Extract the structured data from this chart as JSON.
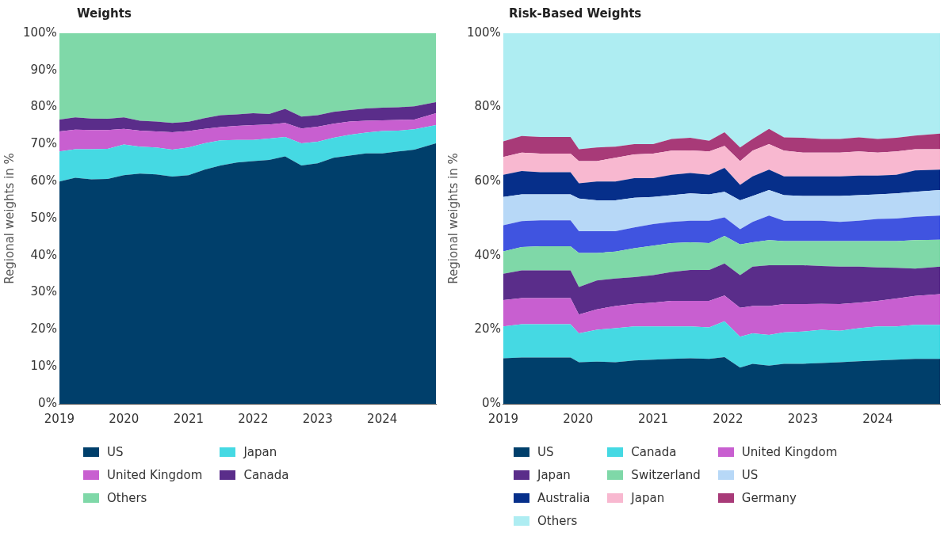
{
  "chart_data": [
    {
      "type": "area",
      "title": "Weights",
      "ylabel": "Regional weights in %",
      "stacked": true,
      "legend": "bottom",
      "grid": false,
      "x": [
        "2019-01-01",
        "2019-04-01",
        "2019-07-01",
        "2019-10-01",
        "2020-01-01",
        "2020-04-01",
        "2020-07-01",
        "2020-10-01",
        "2021-01-01",
        "2021-04-01",
        "2021-07-01",
        "2021-10-01",
        "2022-01-01",
        "2022-04-01",
        "2022-07-01",
        "2022-10-01",
        "2023-01-01",
        "2023-04-01",
        "2023-07-01",
        "2023-10-01",
        "2024-01-01",
        "2024-04-01",
        "2024-07-01",
        "2024-10-31"
      ],
      "xlim": [
        "2019-01-01",
        "2024-10-31"
      ],
      "xticks": [
        {
          "value": "2019-01-01",
          "label": "2019"
        },
        {
          "value": "2020-01-01",
          "label": "2020"
        },
        {
          "value": "2021-01-01",
          "label": "2021"
        },
        {
          "value": "2022-01-01",
          "label": "2022"
        },
        {
          "value": "2023-01-01",
          "label": "2023"
        },
        {
          "value": "2024-01-01",
          "label": "2024"
        }
      ],
      "ylim": [
        0,
        100
      ],
      "yticks": [
        {
          "value": 0,
          "label": "0%"
        },
        {
          "value": 10,
          "label": "10%"
        },
        {
          "value": 20,
          "label": "20%"
        },
        {
          "value": 30,
          "label": "30%"
        },
        {
          "value": 40,
          "label": "40%"
        },
        {
          "value": 50,
          "label": "50%"
        },
        {
          "value": 60,
          "label": "60%"
        },
        {
          "value": 70,
          "label": "70%"
        },
        {
          "value": 80,
          "label": "80%"
        },
        {
          "value": 90,
          "label": "90%"
        },
        {
          "value": 100,
          "label": "100%"
        }
      ],
      "series": [
        {
          "name": "US",
          "color": "#003f6b",
          "values": [
            60.0,
            61.0,
            60.6,
            60.7,
            61.7,
            62.1,
            61.9,
            61.3,
            61.7,
            63.2,
            64.3,
            65.1,
            65.5,
            65.8,
            66.8,
            64.3,
            64.9,
            66.4,
            67.0,
            67.6,
            67.6,
            68.1,
            68.6,
            70.3
          ]
        },
        {
          "name": "Japan",
          "color": "#45d9e3",
          "values": [
            8.1,
            7.7,
            8.1,
            8.1,
            8.3,
            7.3,
            7.3,
            7.3,
            7.5,
            7.1,
            6.8,
            6.1,
            5.7,
            5.8,
            5.2,
            6.0,
            5.8,
            5.4,
            5.6,
            5.6,
            6.0,
            5.6,
            5.5,
            4.9
          ]
        },
        {
          "name": "United Kingdom",
          "color": "#c85fd0",
          "values": [
            5.4,
            5.3,
            5.2,
            5.1,
            4.2,
            4.3,
            4.3,
            4.7,
            4.4,
            3.9,
            3.6,
            3.8,
            4.0,
            3.8,
            3.8,
            4.0,
            4.1,
            3.8,
            3.6,
            3.2,
            2.9,
            2.9,
            2.6,
            3.2
          ]
        },
        {
          "name": "Canada",
          "color": "#5a2d8a",
          "values": [
            3.2,
            3.3,
            3.1,
            3.0,
            3.1,
            2.7,
            2.7,
            2.5,
            2.5,
            2.9,
            3.2,
            3.1,
            3.2,
            2.8,
            3.8,
            3.2,
            3.1,
            3.2,
            3.1,
            3.3,
            3.4,
            3.4,
            3.6,
            3.0
          ]
        },
        {
          "name": "Others",
          "color": "#7fd8a8",
          "values": [
            23.3,
            22.7,
            23.0,
            23.1,
            22.7,
            23.6,
            23.8,
            24.2,
            23.9,
            22.9,
            22.1,
            21.9,
            21.6,
            21.8,
            20.4,
            22.5,
            22.1,
            21.2,
            20.7,
            20.3,
            20.1,
            20.0,
            19.7,
            18.6
          ]
        }
      ]
    },
    {
      "type": "area",
      "title": "Risk-Based Weights",
      "ylabel": "Regional weights in %",
      "stacked": true,
      "legend": "bottom",
      "grid": false,
      "x": [
        "2019-01-01",
        "2019-04-01",
        "2019-07-01",
        "2019-11-25",
        "2020-01-05",
        "2020-04-01",
        "2020-07-01",
        "2020-10-01",
        "2021-01-01",
        "2021-04-01",
        "2021-07-01",
        "2021-10-01",
        "2021-12-15",
        "2022-03-01",
        "2022-05-01",
        "2022-07-20",
        "2022-10-01",
        "2023-01-01",
        "2023-04-01",
        "2023-07-01",
        "2023-10-01",
        "2024-01-01",
        "2024-04-01",
        "2024-07-01",
        "2024-10-31"
      ],
      "xlim": [
        "2019-01-01",
        "2024-10-31"
      ],
      "xticks": [
        {
          "value": "2019-01-01",
          "label": "2019"
        },
        {
          "value": "2020-01-01",
          "label": "2020"
        },
        {
          "value": "2021-01-01",
          "label": "2021"
        },
        {
          "value": "2022-01-01",
          "label": "2022"
        },
        {
          "value": "2023-01-01",
          "label": "2023"
        },
        {
          "value": "2024-01-01",
          "label": "2024"
        }
      ],
      "ylim": [
        0,
        100
      ],
      "yticks": [
        {
          "value": 0,
          "label": "0%"
        },
        {
          "value": 20,
          "label": "20%"
        },
        {
          "value": 40,
          "label": "40%"
        },
        {
          "value": 60,
          "label": "60%"
        },
        {
          "value": 80,
          "label": "80%"
        },
        {
          "value": 100,
          "label": "100%"
        }
      ],
      "series": [
        {
          "name": "US",
          "color": "#003f6b",
          "values": [
            12.3,
            12.5,
            12.5,
            12.5,
            11.2,
            11.4,
            11.2,
            11.7,
            11.9,
            12.1,
            12.3,
            12.1,
            12.6,
            9.8,
            10.8,
            10.3,
            10.8,
            10.8,
            11.0,
            11.2,
            11.5,
            11.7,
            11.9,
            12.1,
            12.1
          ]
        },
        {
          "name": "Canada",
          "color": "#45d9e3",
          "values": [
            8.6,
            9.0,
            9.0,
            9.0,
            7.8,
            8.6,
            9.2,
            9.2,
            9.0,
            8.8,
            8.6,
            8.5,
            9.7,
            8.3,
            8.2,
            8.3,
            8.5,
            8.7,
            9.0,
            8.5,
            8.9,
            9.2,
            9.0,
            9.2,
            9.2
          ]
        },
        {
          "name": "United Kingdom",
          "color": "#c85fd0",
          "values": [
            7.1,
            7.0,
            7.0,
            7.0,
            5.1,
            5.5,
            6.0,
            6.1,
            6.4,
            6.9,
            6.9,
            7.2,
            6.9,
            7.8,
            7.4,
            7.8,
            7.6,
            7.4,
            7.0,
            7.2,
            6.9,
            6.9,
            7.5,
            7.8,
            8.3
          ]
        },
        {
          "name": "Japan",
          "color": "#5a2d8a",
          "values": [
            7.1,
            7.5,
            7.5,
            7.5,
            7.4,
            7.8,
            7.4,
            7.2,
            7.4,
            7.8,
            8.3,
            8.3,
            8.7,
            8.8,
            10.6,
            11.0,
            10.5,
            10.5,
            10.2,
            10.1,
            9.7,
            9.0,
            8.3,
            7.4,
            7.4
          ]
        },
        {
          "name": "Switzerland",
          "color": "#7fd8a8",
          "values": [
            6.0,
            6.3,
            6.5,
            6.5,
            9.2,
            7.4,
            7.3,
            7.8,
            8.0,
            7.8,
            7.5,
            7.3,
            7.4,
            8.3,
            6.6,
            6.8,
            6.5,
            6.5,
            6.7,
            6.9,
            6.9,
            7.1,
            7.2,
            7.7,
            7.3
          ]
        },
        {
          "color": "#4054e0",
          "values": [
            7.1,
            7.0,
            7.0,
            7.0,
            5.9,
            5.9,
            5.5,
            5.6,
            5.8,
            5.7,
            5.8,
            6.0,
            5.0,
            4.1,
            5.5,
            6.6,
            5.5,
            5.5,
            5.5,
            5.2,
            5.5,
            6.0,
            6.1,
            6.3,
            6.5
          ]
        },
        {
          "name": "US",
          "color": "#b7d8f7",
          "values": [
            7.6,
            7.2,
            7.0,
            7.0,
            8.8,
            8.3,
            8.3,
            8.0,
            7.3,
            7.2,
            7.4,
            7.1,
            6.9,
            7.8,
            7.0,
            6.9,
            6.9,
            6.7,
            6.7,
            7.0,
            6.9,
            6.6,
            6.8,
            6.7,
            6.9
          ]
        },
        {
          "name": "Australia",
          "color": "#062f8a",
          "values": [
            6.0,
            6.3,
            6.0,
            6.0,
            4.1,
            5.1,
            5.1,
            5.3,
            5.1,
            5.5,
            5.5,
            5.3,
            6.5,
            4.2,
            5.3,
            5.5,
            5.1,
            5.3,
            5.3,
            5.3,
            5.3,
            5.1,
            5.0,
            5.8,
            5.5
          ]
        },
        {
          "name": "Japan",
          "color": "#f8b8d0",
          "values": [
            4.8,
            5.0,
            5.0,
            5.0,
            6.0,
            5.5,
            6.4,
            6.4,
            6.6,
            6.5,
            6.1,
            6.3,
            5.9,
            6.4,
            6.9,
            6.9,
            6.9,
            6.4,
            6.4,
            6.4,
            6.5,
            6.2,
            6.3,
            5.7,
            5.5
          ]
        },
        {
          "name": "Germany",
          "color": "#a83a78",
          "values": [
            4.2,
            4.5,
            4.5,
            4.5,
            3.2,
            3.7,
            3.0,
            2.8,
            2.6,
            3.2,
            3.4,
            2.9,
            3.7,
            3.7,
            3.2,
            4.1,
            3.6,
            4.0,
            3.7,
            3.7,
            3.8,
            3.7,
            3.7,
            3.7,
            4.2
          ]
        },
        {
          "name": "Others",
          "color": "#aeedf2",
          "values": [
            29.2,
            27.7,
            28.0,
            28.0,
            31.3,
            30.8,
            30.6,
            29.9,
            29.9,
            28.5,
            28.2,
            29.0,
            26.7,
            30.8,
            28.5,
            25.8,
            28.1,
            28.2,
            28.5,
            28.5,
            28.1,
            28.5,
            28.2,
            27.6,
            27.1
          ]
        }
      ]
    }
  ]
}
